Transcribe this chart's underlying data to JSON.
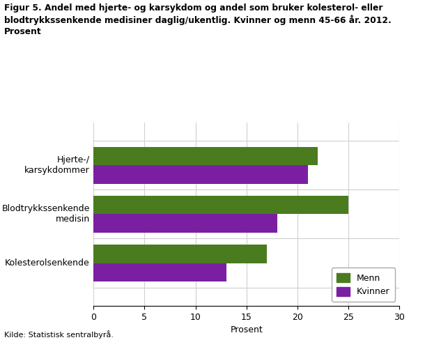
{
  "title": "Figur 5. Andel med hjerte- og karsykdom og andel som bruker kolesterol- eller\nblodtrykkssenkende medisiner daglig/ukentlig. Kvinner og menn 45-66 år. 2012.\nProsent",
  "categories": [
    "Hjerte-/\nkarsykdommer",
    "Blodtrykkssenkende\nmedisin",
    "Kolesterolsenkende"
  ],
  "menn_values": [
    22,
    25,
    17
  ],
  "kvinner_values": [
    21,
    18,
    13
  ],
  "menn_color": "#4a7c1f",
  "kvinner_color": "#7b1fa2",
  "xlabel": "Prosent",
  "xlim": [
    0,
    30
  ],
  "xticks": [
    0,
    5,
    10,
    15,
    20,
    25,
    30
  ],
  "legend_labels": [
    "Menn",
    "Kvinner"
  ],
  "source": "Kilde: Statistisk sentralbyrå.",
  "bg_color": "#ffffff",
  "grid_color": "#d0d0d0",
  "bar_height": 0.38
}
